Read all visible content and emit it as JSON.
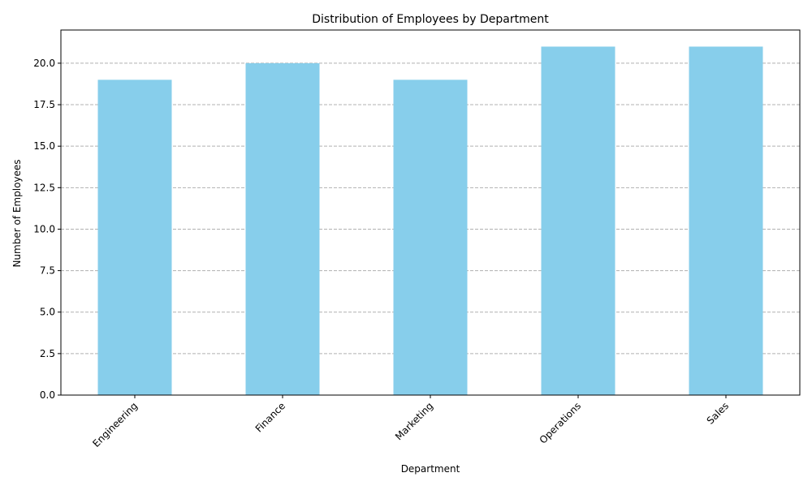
{
  "chart_data": {
    "type": "bar",
    "title": "Distribution of Employees by Department",
    "xlabel": "Department",
    "ylabel": "Number of Employees",
    "categories": [
      "Engineering",
      "Finance",
      "Marketing",
      "Operations",
      "Sales"
    ],
    "values": [
      19,
      20,
      19,
      21,
      21
    ],
    "ylim": [
      0,
      22
    ],
    "yticks": [
      "0.0",
      "2.5",
      "5.0",
      "7.5",
      "10.0",
      "12.5",
      "15.0",
      "17.5",
      "20.0"
    ],
    "grid": "y-axis, dashed",
    "legend": "none",
    "bar_color": "#87ceeb",
    "grid_color": "#b0b0b0"
  }
}
